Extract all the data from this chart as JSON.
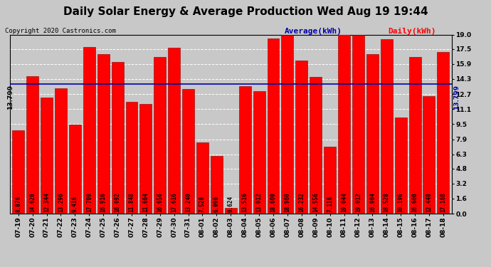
{
  "title": "Daily Solar Energy & Average Production Wed Aug 19 19:44",
  "copyright": "Copyright 2020 Castronics.com",
  "legend_avg": "Average(kWh)",
  "legend_daily": "Daily(kWh)",
  "average_value": 13.799,
  "categories": [
    "07-19",
    "07-20",
    "07-21",
    "07-22",
    "07-23",
    "07-24",
    "07-25",
    "07-26",
    "07-27",
    "07-28",
    "07-29",
    "07-30",
    "07-31",
    "08-01",
    "08-02",
    "08-03",
    "08-04",
    "08-05",
    "08-06",
    "08-07",
    "08-08",
    "08-09",
    "08-10",
    "08-11",
    "08-12",
    "08-13",
    "08-14",
    "08-15",
    "08-16",
    "08-17",
    "08-18"
  ],
  "values": [
    8.876,
    14.62,
    12.344,
    13.296,
    9.416,
    17.7,
    16.916,
    16.092,
    11.848,
    11.664,
    16.656,
    17.616,
    13.24,
    7.528,
    6.096,
    0.624,
    13.516,
    13.012,
    18.6,
    18.96,
    16.232,
    14.556,
    7.116,
    19.044,
    19.012,
    16.904,
    18.528,
    10.196,
    16.66,
    12.448,
    17.168
  ],
  "bar_labels": [
    "8.876",
    "14.620",
    "12.344",
    "13.296",
    "9.416",
    "17.700",
    "16.916",
    "16.092",
    "11.848",
    "11.664",
    "16.656",
    "17.616",
    "13.240",
    "7.528",
    "6.096",
    "0.624",
    "13.516",
    "13.012",
    "18.600",
    "18.960",
    "16.232",
    "14.556",
    "7.116",
    "19.044",
    "19.012",
    "16.904",
    "18.528",
    "10.196",
    "16.660",
    "12.448",
    "17.168"
  ],
  "bar_color": "#ff0000",
  "avg_line_color": "#0000aa",
  "ylim": [
    0,
    19.0
  ],
  "yticks": [
    0.0,
    1.6,
    3.2,
    4.8,
    6.3,
    7.9,
    9.5,
    11.1,
    12.7,
    14.3,
    15.9,
    17.5,
    19.0
  ],
  "grid_color": "#ffffff",
  "bg_color": "#c8c8c8",
  "plot_bg_color": "#c8c8c8",
  "title_fontsize": 11,
  "tick_fontsize": 6.5,
  "bar_label_fontsize": 5.5,
  "copyright_fontsize": 6.5,
  "legend_fontsize": 8
}
